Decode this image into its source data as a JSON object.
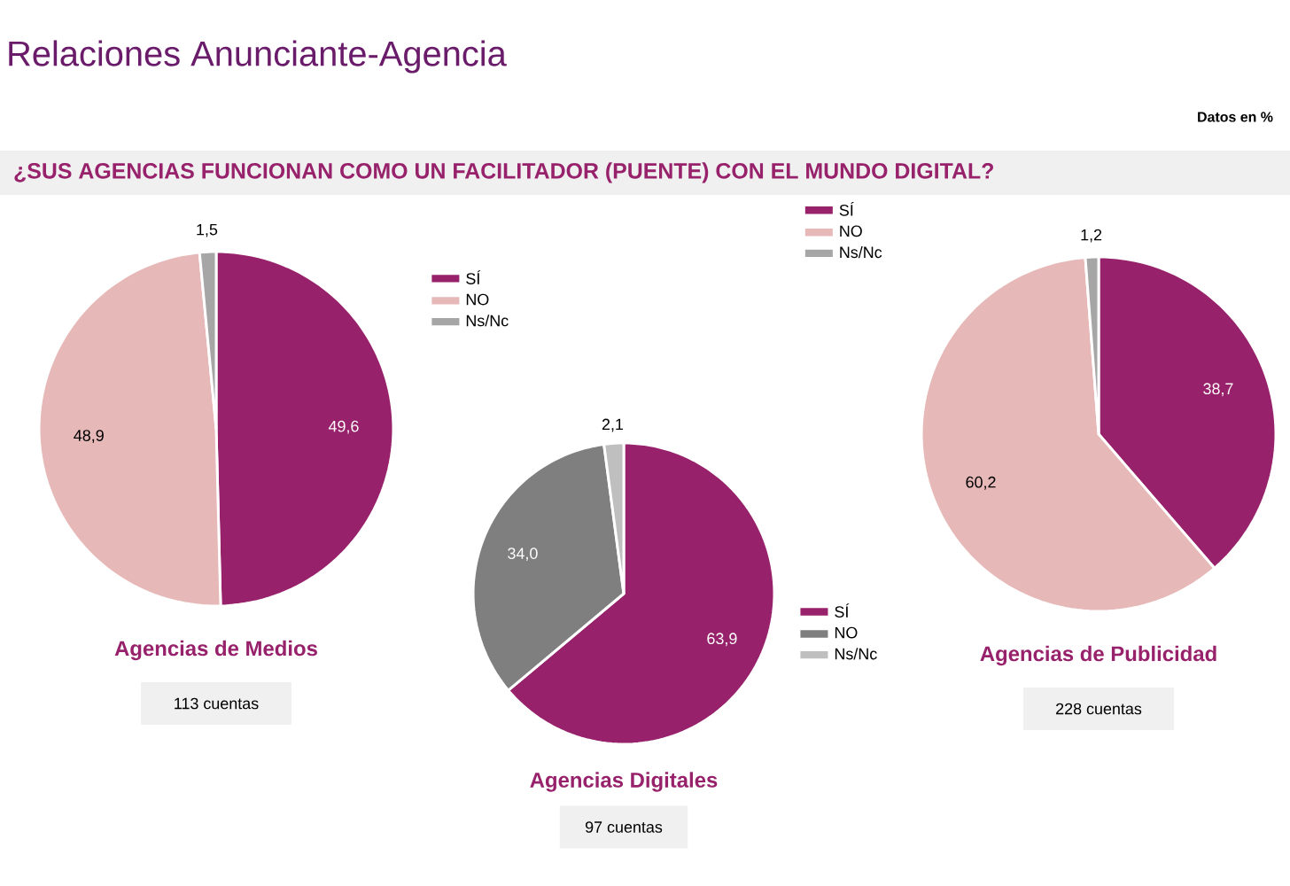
{
  "chart_data": [
    {
      "type": "pie",
      "title": "Relaciones Anunciante-Agencia",
      "subtitle": "¿SUS AGENCIAS FUNCIONAN COMO UN FACILITADOR (PUENTE) CON EL MUNDO DIGITAL?",
      "xlabel": "Agencias de Medios",
      "annotations": [
        "Datos en %",
        "113 cuentas"
      ],
      "categories": [
        "SÍ",
        "NO",
        "Ns/Nc"
      ],
      "values": [
        49.6,
        48.9,
        1.5
      ],
      "value_labels": [
        "49,6",
        "48,9",
        "1,5"
      ],
      "colors": [
        "#97226b",
        "#e6b8b7",
        "#a6a6a6"
      ],
      "legend": "top right"
    },
    {
      "type": "pie",
      "xlabel": "Agencias Digitales",
      "annotations": [
        "97 cuentas"
      ],
      "categories": [
        "SÍ",
        "NO",
        "Ns/Nc"
      ],
      "values": [
        63.9,
        34.0,
        2.1
      ],
      "value_labels": [
        "63,9",
        "34,0",
        "2,1"
      ],
      "colors": [
        "#97226b",
        "#7f7f7f",
        "#bfbfbf"
      ],
      "legend": "right"
    },
    {
      "type": "pie",
      "xlabel": "Agencias de Publicidad",
      "annotations": [
        "228 cuentas"
      ],
      "categories": [
        "SÍ",
        "NO",
        "Ns/Nc"
      ],
      "values": [
        38.7,
        60.2,
        1.2
      ],
      "value_labels": [
        "38,7",
        "60,2",
        "1,2"
      ],
      "colors": [
        "#97226b",
        "#e6b8b7",
        "#a6a6a6"
      ],
      "legend": "top left"
    }
  ]
}
